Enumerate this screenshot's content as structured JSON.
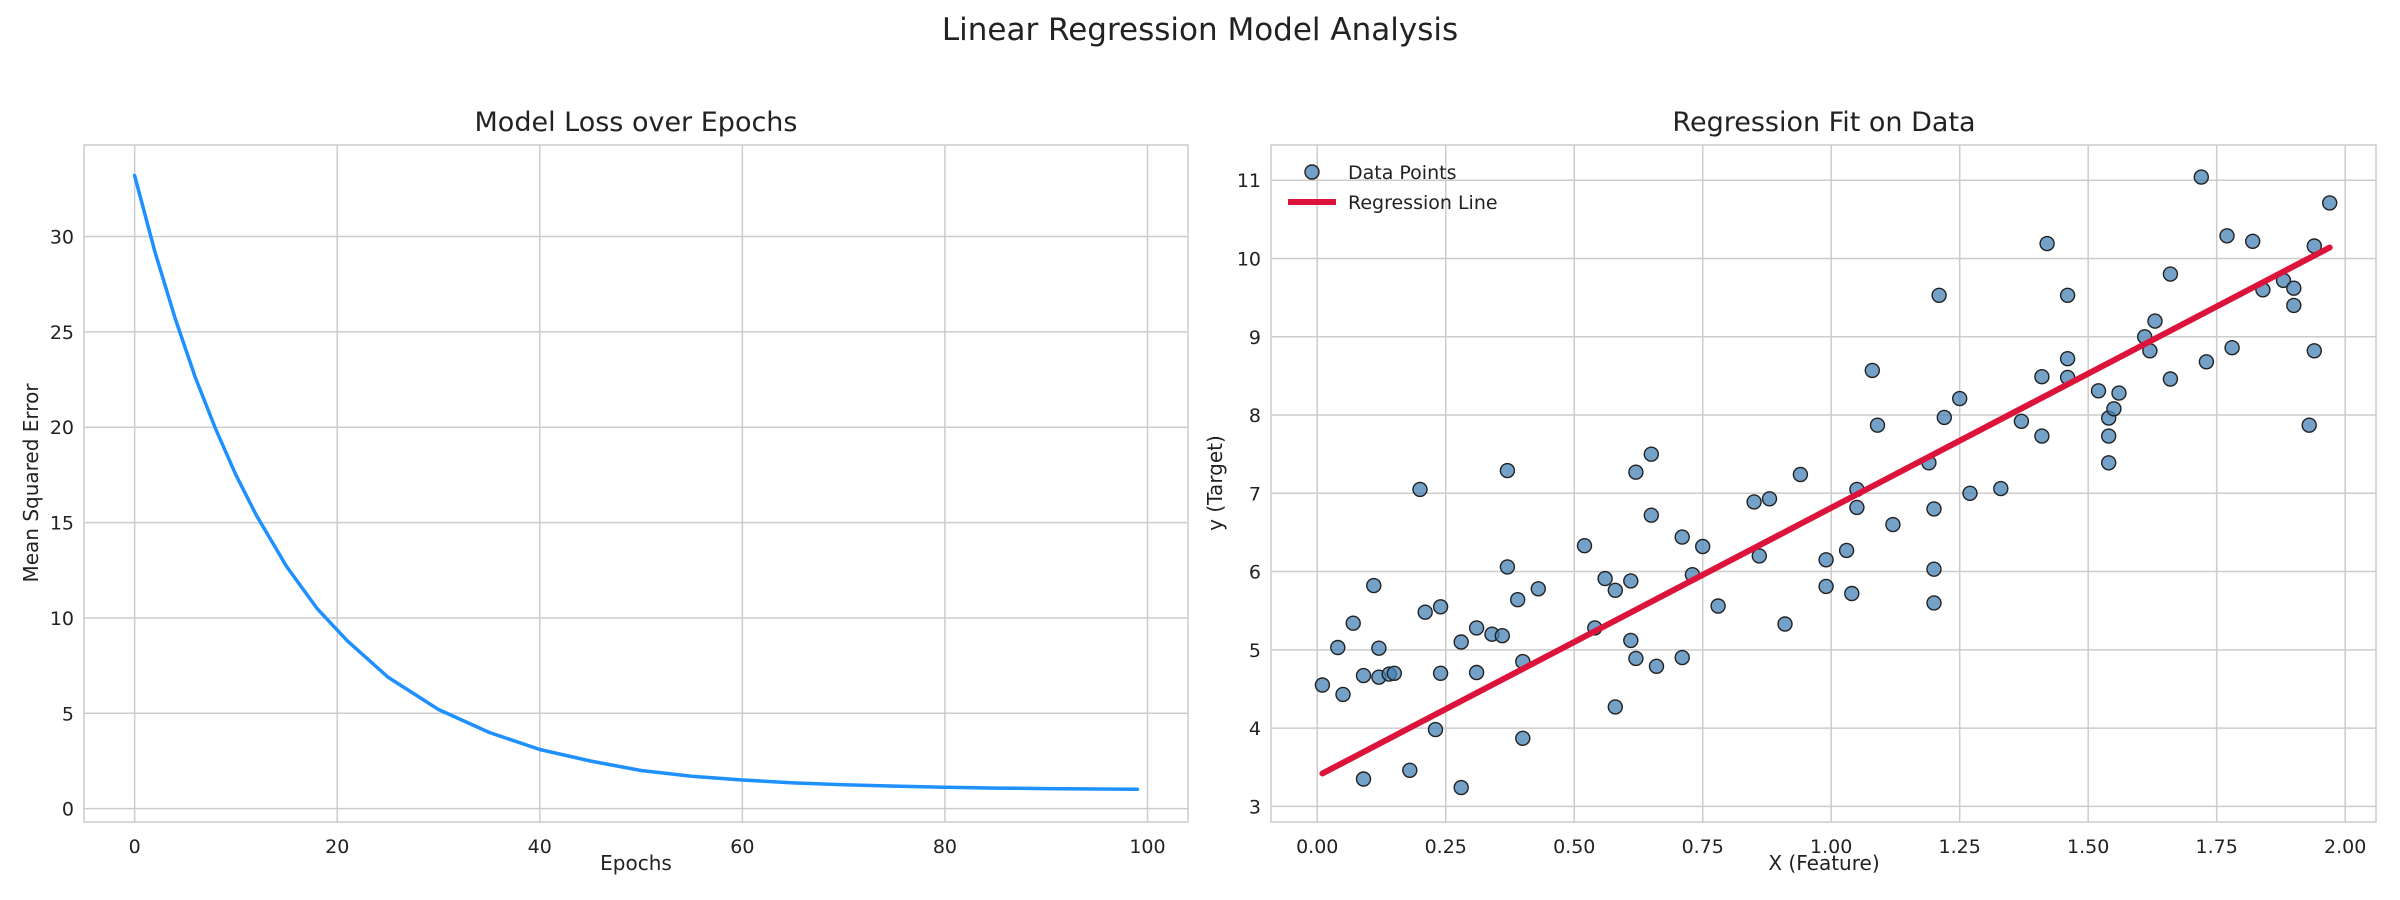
{
  "figure": {
    "title": "Linear Regression Model Analysis"
  },
  "chart_data": [
    {
      "type": "line",
      "title": "Model Loss over Epochs",
      "xlabel": "Epochs",
      "ylabel": "Mean Squared Error",
      "xlim": [
        -5,
        104
      ],
      "ylim": [
        -0.7,
        34.8
      ],
      "xticks": [
        0,
        20,
        40,
        60,
        80,
        100
      ],
      "xtick_labels": [
        "0",
        "20",
        "40",
        "60",
        "80",
        "100"
      ],
      "yticks": [
        0,
        5,
        10,
        15,
        20,
        25,
        30
      ],
      "ytick_labels": [
        "0",
        "5",
        "10",
        "15",
        "20",
        "25",
        "30"
      ],
      "grid": true,
      "legend": "none",
      "series": [
        {
          "color": "#1e90ff",
          "x": [
            0,
            2,
            4,
            6,
            8,
            10,
            12,
            15,
            18,
            21,
            25,
            30,
            35,
            40,
            45,
            50,
            55,
            60,
            65,
            70,
            75,
            80,
            85,
            90,
            95,
            99
          ],
          "y": [
            33.2,
            29.2,
            25.7,
            22.6,
            19.9,
            17.5,
            15.4,
            12.7,
            10.5,
            8.8,
            6.9,
            5.2,
            4.0,
            3.1,
            2.5,
            2.0,
            1.7,
            1.5,
            1.35,
            1.25,
            1.18,
            1.12,
            1.08,
            1.05,
            1.03,
            1.02
          ]
        }
      ]
    },
    {
      "type": "scatter",
      "title": "Regression Fit on Data",
      "xlabel": "X (Feature)",
      "ylabel": "y (Target)",
      "xlim": [
        -0.09,
        2.06
      ],
      "ylim": [
        2.8,
        11.45
      ],
      "xticks": [
        0.0,
        0.25,
        0.5,
        0.75,
        1.0,
        1.25,
        1.5,
        1.75,
        2.0
      ],
      "xtick_labels": [
        "0.00",
        "0.25",
        "0.50",
        "0.75",
        "1.00",
        "1.25",
        "1.50",
        "1.75",
        "2.00"
      ],
      "yticks": [
        3,
        4,
        5,
        6,
        7,
        8,
        9,
        10,
        11
      ],
      "ytick_labels": [
        "3",
        "4",
        "5",
        "6",
        "7",
        "8",
        "9",
        "10",
        "11"
      ],
      "grid": true,
      "legend": "top-left",
      "series": [
        {
          "name": "Data Points",
          "kind": "scatter",
          "color": "#4682b4",
          "points": [
            [
              0.01,
              4.55
            ],
            [
              0.04,
              5.03
            ],
            [
              0.05,
              4.43
            ],
            [
              0.07,
              5.34
            ],
            [
              0.09,
              4.67
            ],
            [
              0.09,
              3.35
            ],
            [
              0.11,
              5.82
            ],
            [
              0.12,
              5.02
            ],
            [
              0.12,
              4.65
            ],
            [
              0.14,
              4.69
            ],
            [
              0.15,
              4.7
            ],
            [
              0.18,
              3.46
            ],
            [
              0.2,
              7.05
            ],
            [
              0.21,
              5.48
            ],
            [
              0.23,
              3.98
            ],
            [
              0.24,
              5.55
            ],
            [
              0.24,
              4.7
            ],
            [
              0.28,
              5.1
            ],
            [
              0.28,
              3.24
            ],
            [
              0.31,
              5.28
            ],
            [
              0.31,
              4.71
            ],
            [
              0.34,
              5.2
            ],
            [
              0.36,
              5.18
            ],
            [
              0.37,
              6.06
            ],
            [
              0.37,
              7.29
            ],
            [
              0.39,
              5.64
            ],
            [
              0.4,
              4.85
            ],
            [
              0.4,
              3.87
            ],
            [
              0.43,
              5.78
            ],
            [
              0.52,
              6.33
            ],
            [
              0.54,
              5.28
            ],
            [
              0.56,
              5.91
            ],
            [
              0.58,
              5.76
            ],
            [
              0.58,
              4.27
            ],
            [
              0.61,
              5.88
            ],
            [
              0.61,
              5.12
            ],
            [
              0.62,
              7.27
            ],
            [
              0.62,
              4.89
            ],
            [
              0.65,
              7.5
            ],
            [
              0.65,
              6.72
            ],
            [
              0.66,
              4.79
            ],
            [
              0.71,
              6.44
            ],
            [
              0.71,
              4.9
            ],
            [
              0.73,
              5.96
            ],
            [
              0.75,
              6.32
            ],
            [
              0.78,
              5.56
            ],
            [
              0.85,
              6.89
            ],
            [
              0.86,
              6.2
            ],
            [
              0.88,
              6.93
            ],
            [
              0.91,
              5.33
            ],
            [
              0.94,
              7.24
            ],
            [
              0.99,
              6.15
            ],
            [
              0.99,
              5.81
            ],
            [
              1.03,
              6.27
            ],
            [
              1.04,
              5.72
            ],
            [
              1.05,
              7.05
            ],
            [
              1.05,
              6.82
            ],
            [
              1.08,
              8.57
            ],
            [
              1.09,
              7.87
            ],
            [
              1.12,
              6.6
            ],
            [
              1.19,
              7.39
            ],
            [
              1.2,
              6.03
            ],
            [
              1.2,
              5.6
            ],
            [
              1.2,
              6.8
            ],
            [
              1.21,
              9.53
            ],
            [
              1.22,
              7.97
            ],
            [
              1.25,
              8.21
            ],
            [
              1.27,
              7.0
            ],
            [
              1.33,
              7.06
            ],
            [
              1.37,
              7.92
            ],
            [
              1.41,
              8.49
            ],
            [
              1.41,
              7.73
            ],
            [
              1.42,
              10.19
            ],
            [
              1.46,
              9.53
            ],
            [
              1.46,
              8.72
            ],
            [
              1.46,
              8.48
            ],
            [
              1.52,
              8.31
            ],
            [
              1.54,
              7.96
            ],
            [
              1.54,
              7.73
            ],
            [
              1.54,
              7.39
            ],
            [
              1.55,
              8.08
            ],
            [
              1.56,
              8.28
            ],
            [
              1.61,
              9.0
            ],
            [
              1.62,
              8.82
            ],
            [
              1.63,
              9.2
            ],
            [
              1.66,
              9.8
            ],
            [
              1.66,
              8.46
            ],
            [
              1.72,
              11.04
            ],
            [
              1.73,
              8.68
            ],
            [
              1.77,
              10.29
            ],
            [
              1.78,
              8.86
            ],
            [
              1.82,
              10.22
            ],
            [
              1.84,
              9.6
            ],
            [
              1.88,
              9.72
            ],
            [
              1.9,
              9.62
            ],
            [
              1.9,
              9.4
            ],
            [
              1.93,
              7.87
            ],
            [
              1.94,
              10.16
            ],
            [
              1.94,
              8.82
            ],
            [
              1.97,
              10.71
            ]
          ]
        },
        {
          "name": "Regression Line",
          "kind": "line",
          "color": "#dc143c",
          "x": [
            0.01,
            1.97
          ],
          "y": [
            3.42,
            10.14
          ]
        }
      ]
    }
  ]
}
